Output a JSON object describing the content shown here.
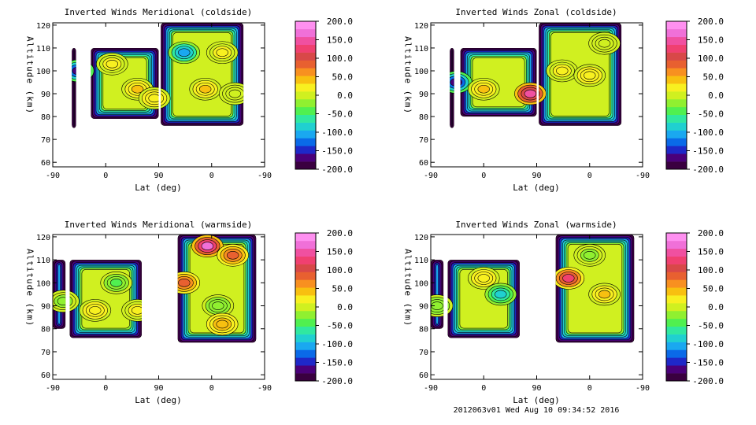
{
  "footer": "2012063v01 Wed Aug 10 09:34:52 2016",
  "colorbar": {
    "labels": [
      "200.0",
      "150.0",
      "100.0",
      "50.0",
      "0.0",
      "-50.0",
      "-100.0",
      "-150.0",
      "-200.0"
    ],
    "values": [
      200,
      150,
      100,
      50,
      0,
      -50,
      -100,
      -150,
      -200
    ],
    "range": [
      -200,
      200
    ],
    "colors": [
      "#3a0040",
      "#4a007a",
      "#1e28c8",
      "#0a6ae8",
      "#1aa8f0",
      "#20d0d0",
      "#30e8a0",
      "#50f050",
      "#90f030",
      "#d0f020",
      "#f8f020",
      "#f8c010",
      "#f89020",
      "#e86030",
      "#d84848",
      "#f04070",
      "#f050a0",
      "#f070d8",
      "#ff90f0"
    ]
  },
  "chart_data": [
    {
      "type": "heatmap",
      "title": "Inverted Winds Meridional (coldside)",
      "xlabel": "Lat (deg)",
      "ylabel": "Altitude (km)",
      "x_ticks": [
        "-90",
        "0",
        "90",
        "0",
        "-90"
      ],
      "y_ticks": [
        "60",
        "70",
        "80",
        "90",
        "100",
        "110",
        "120"
      ],
      "ylim": [
        58,
        121
      ],
      "blobs": [
        {
          "x": 0.12,
          "y": 100,
          "v": -170
        },
        {
          "x": 0.28,
          "y": 103,
          "v": 20
        },
        {
          "x": 0.4,
          "y": 92,
          "v": 40
        },
        {
          "x": 0.48,
          "y": 88,
          "v": 30
        },
        {
          "x": 0.62,
          "y": 108,
          "v": -110
        },
        {
          "x": 0.72,
          "y": 92,
          "v": 40
        },
        {
          "x": 0.8,
          "y": 108,
          "v": 20
        },
        {
          "x": 0.86,
          "y": 90,
          "v": 10
        }
      ]
    },
    {
      "type": "heatmap",
      "title": "Inverted Winds Zonal (coldside)",
      "xlabel": "Lat (deg)",
      "ylabel": "Altitude (km)",
      "x_ticks": [
        "-90",
        "0",
        "90",
        "0",
        "-90"
      ],
      "y_ticks": [
        "60",
        "70",
        "80",
        "90",
        "100",
        "110",
        "120"
      ],
      "ylim": [
        58,
        121
      ],
      "blobs": [
        {
          "x": 0.12,
          "y": 95,
          "v": -170
        },
        {
          "x": 0.25,
          "y": 92,
          "v": 40
        },
        {
          "x": 0.47,
          "y": 90,
          "v": 150
        },
        {
          "x": 0.62,
          "y": 100,
          "v": 20
        },
        {
          "x": 0.75,
          "y": 98,
          "v": 30
        },
        {
          "x": 0.82,
          "y": 112,
          "v": 0
        }
      ]
    },
    {
      "type": "heatmap",
      "title": "Inverted Winds Meridional (warmside)",
      "xlabel": "Lat (deg)",
      "ylabel": "Altitude (km)",
      "x_ticks": [
        "-90",
        "0",
        "90",
        "0",
        "-90"
      ],
      "y_ticks": [
        "60",
        "70",
        "80",
        "90",
        "100",
        "110",
        "120"
      ],
      "ylim": [
        58,
        121
      ],
      "blobs": [
        {
          "x": 0.05,
          "y": 92,
          "v": -20
        },
        {
          "x": 0.2,
          "y": 88,
          "v": 30
        },
        {
          "x": 0.4,
          "y": 88,
          "v": 20
        },
        {
          "x": 0.3,
          "y": 100,
          "v": -40
        },
        {
          "x": 0.73,
          "y": 116,
          "v": 160
        },
        {
          "x": 0.85,
          "y": 112,
          "v": 80
        },
        {
          "x": 0.62,
          "y": 100,
          "v": 90
        },
        {
          "x": 0.78,
          "y": 90,
          "v": -30
        },
        {
          "x": 0.8,
          "y": 82,
          "v": 50
        }
      ]
    },
    {
      "type": "heatmap",
      "title": "Inverted Winds Zonal (warmside)",
      "xlabel": "Lat (deg)",
      "ylabel": "Altitude (km)",
      "x_ticks": [
        "-90",
        "0",
        "90",
        "0",
        "-90"
      ],
      "y_ticks": [
        "60",
        "70",
        "80",
        "90",
        "100",
        "110",
        "120"
      ],
      "ylim": [
        58,
        121
      ],
      "blobs": [
        {
          "x": 0.03,
          "y": 90,
          "v": -30
        },
        {
          "x": 0.25,
          "y": 102,
          "v": 30
        },
        {
          "x": 0.33,
          "y": 95,
          "v": -80
        },
        {
          "x": 0.65,
          "y": 102,
          "v": 120
        },
        {
          "x": 0.75,
          "y": 112,
          "v": -20
        },
        {
          "x": 0.82,
          "y": 95,
          "v": 40
        }
      ]
    }
  ]
}
